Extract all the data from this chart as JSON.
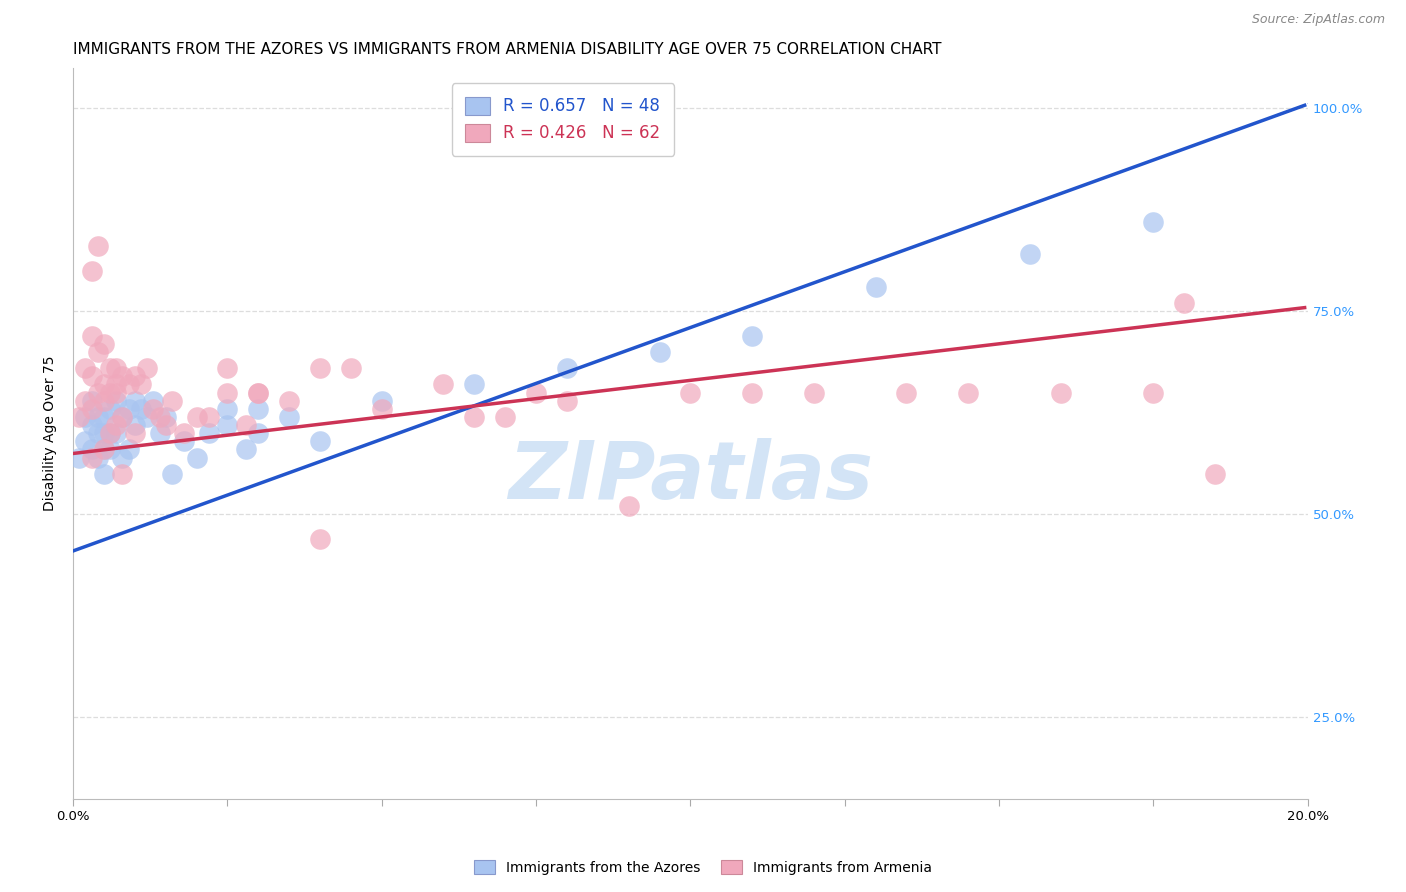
{
  "title": "IMMIGRANTS FROM THE AZORES VS IMMIGRANTS FROM ARMENIA DISABILITY AGE OVER 75 CORRELATION CHART",
  "source": "Source: ZipAtlas.com",
  "ylabel": "Disability Age Over 75",
  "xlim": [
    0.0,
    0.2
  ],
  "ylim": [
    0.15,
    1.05
  ],
  "ytick_labels_right": [
    "25.0%",
    "50.0%",
    "75.0%",
    "100.0%"
  ],
  "ytick_vals": [
    0.25,
    0.5,
    0.75,
    1.0
  ],
  "xtick_vals": [
    0.0,
    0.025,
    0.05,
    0.075,
    0.1,
    0.125,
    0.15,
    0.175,
    0.2
  ],
  "xtick_show_labels": [
    true,
    false,
    false,
    false,
    false,
    false,
    false,
    false,
    true
  ],
  "azores_R": "0.657",
  "azores_N": "48",
  "armenia_R": "0.426",
  "armenia_N": "62",
  "azores_dot_color": "#a8c4f0",
  "armenia_dot_color": "#f0a8bc",
  "azores_line_color": "#2255cc",
  "armenia_line_color": "#cc3355",
  "azores_x": [
    0.001,
    0.002,
    0.002,
    0.003,
    0.003,
    0.003,
    0.004,
    0.004,
    0.004,
    0.005,
    0.005,
    0.005,
    0.005,
    0.006,
    0.006,
    0.006,
    0.007,
    0.007,
    0.008,
    0.008,
    0.009,
    0.009,
    0.01,
    0.01,
    0.011,
    0.012,
    0.013,
    0.014,
    0.015,
    0.016,
    0.018,
    0.02,
    0.022,
    0.025,
    0.028,
    0.03,
    0.035,
    0.04,
    0.025,
    0.03,
    0.05,
    0.065,
    0.08,
    0.095,
    0.11,
    0.13,
    0.155,
    0.175
  ],
  "azores_y": [
    0.57,
    0.59,
    0.62,
    0.58,
    0.61,
    0.64,
    0.6,
    0.57,
    0.62,
    0.6,
    0.58,
    0.62,
    0.55,
    0.63,
    0.6,
    0.58,
    0.64,
    0.6,
    0.62,
    0.57,
    0.63,
    0.58,
    0.61,
    0.64,
    0.63,
    0.62,
    0.64,
    0.6,
    0.62,
    0.55,
    0.59,
    0.57,
    0.6,
    0.61,
    0.58,
    0.6,
    0.62,
    0.59,
    0.63,
    0.63,
    0.64,
    0.66,
    0.68,
    0.7,
    0.72,
    0.78,
    0.82,
    0.86
  ],
  "armenia_x": [
    0.001,
    0.002,
    0.002,
    0.003,
    0.003,
    0.003,
    0.004,
    0.004,
    0.005,
    0.005,
    0.005,
    0.006,
    0.006,
    0.007,
    0.007,
    0.007,
    0.008,
    0.008,
    0.009,
    0.01,
    0.01,
    0.011,
    0.012,
    0.013,
    0.014,
    0.015,
    0.016,
    0.018,
    0.02,
    0.022,
    0.025,
    0.028,
    0.03,
    0.035,
    0.04,
    0.045,
    0.05,
    0.06,
    0.065,
    0.07,
    0.075,
    0.08,
    0.09,
    0.1,
    0.11,
    0.12,
    0.135,
    0.145,
    0.16,
    0.175,
    0.003,
    0.004,
    0.005,
    0.006,
    0.007,
    0.025,
    0.03,
    0.04,
    0.18,
    0.185,
    0.003,
    0.008
  ],
  "armenia_y": [
    0.62,
    0.64,
    0.68,
    0.63,
    0.67,
    0.72,
    0.65,
    0.7,
    0.64,
    0.58,
    0.66,
    0.65,
    0.6,
    0.65,
    0.68,
    0.61,
    0.67,
    0.62,
    0.66,
    0.6,
    0.67,
    0.66,
    0.68,
    0.63,
    0.62,
    0.61,
    0.64,
    0.6,
    0.62,
    0.62,
    0.65,
    0.61,
    0.65,
    0.64,
    0.47,
    0.68,
    0.63,
    0.66,
    0.62,
    0.62,
    0.65,
    0.64,
    0.51,
    0.65,
    0.65,
    0.65,
    0.65,
    0.65,
    0.65,
    0.65,
    0.8,
    0.83,
    0.71,
    0.68,
    0.66,
    0.68,
    0.65,
    0.68,
    0.76,
    0.55,
    0.57,
    0.55
  ],
  "watermark_text": "ZIPatlas",
  "watermark_color": "#ddeeff",
  "title_fontsize": 11,
  "axis_label_fontsize": 10,
  "tick_fontsize": 9.5,
  "legend_fontsize": 12
}
